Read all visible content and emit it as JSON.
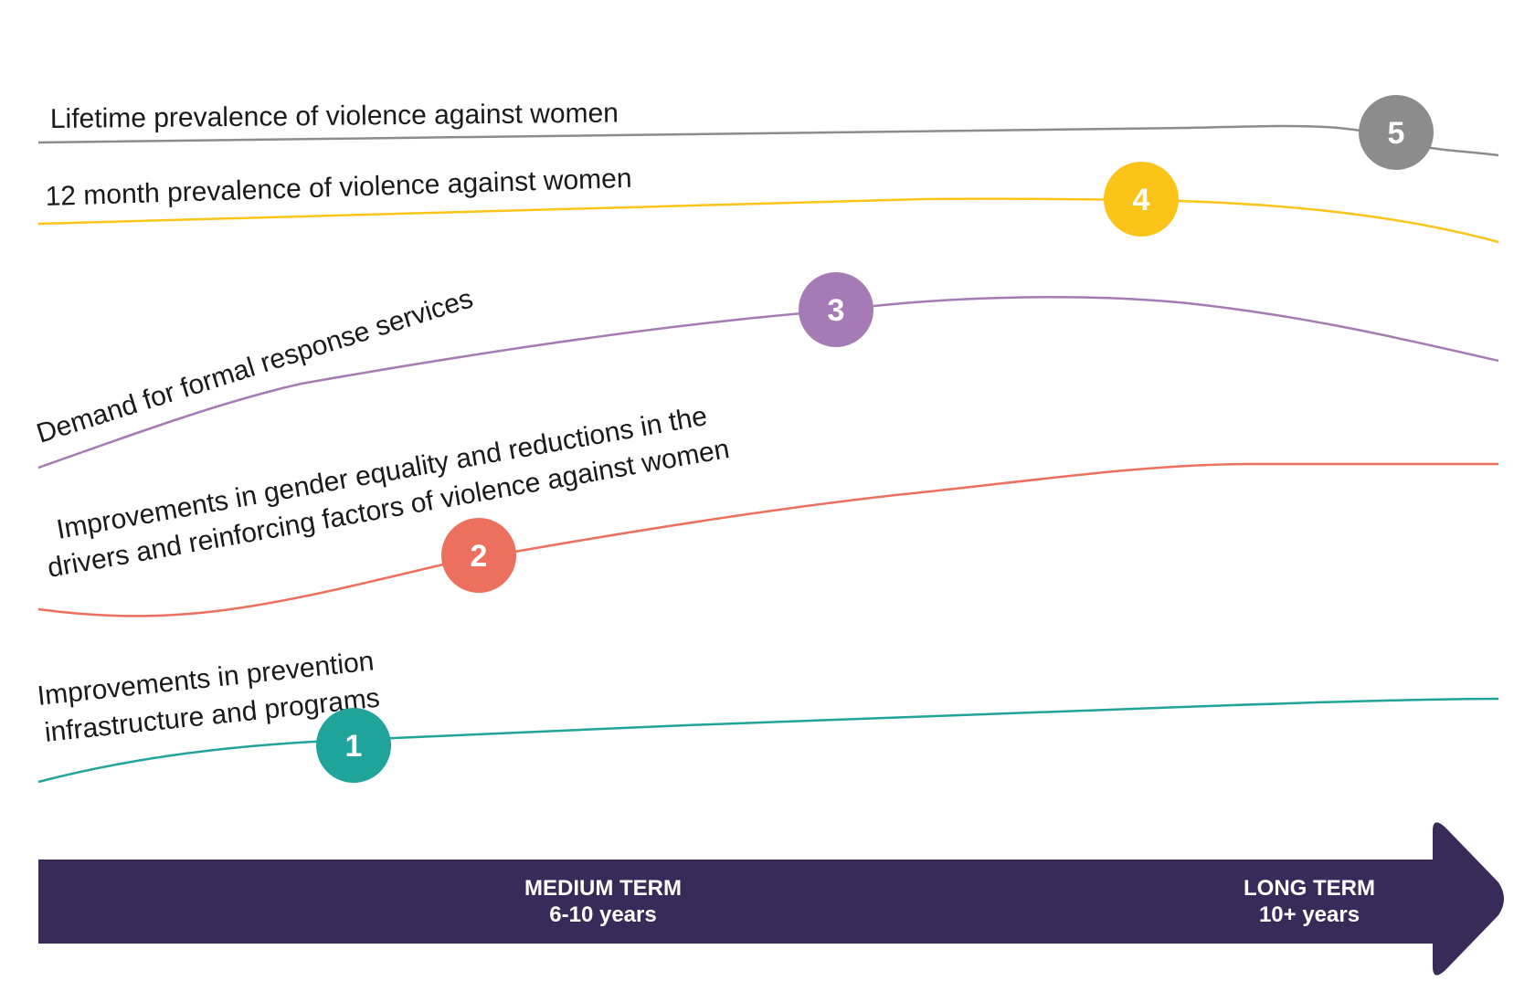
{
  "lines": [
    {
      "id": "lifetime-prevalence",
      "label_lines": [
        "Lifetime prevalence of violence against women"
      ],
      "color": "#8c8c8c",
      "marker": "5"
    },
    {
      "id": "twelve-month-prevalence",
      "label_lines": [
        "12 month prevalence of violence against women"
      ],
      "color": "#fcc419",
      "marker": "4"
    },
    {
      "id": "demand-response-services",
      "label_lines": [
        "Demand for formal response services"
      ],
      "color": "#a67bb5",
      "marker": "3"
    },
    {
      "id": "gender-equality",
      "label_lines": [
        "Improvements in gender equality and reductions in the",
        "drivers and reinforcing factors of violence against women"
      ],
      "color": "#ec705d",
      "marker": "2"
    },
    {
      "id": "prevention-infrastructure",
      "label_lines": [
        "Improvements in prevention",
        "infrastructure and programs"
      ],
      "color": "#1fa39a",
      "marker": "1"
    }
  ],
  "timeline": {
    "color": "#382a59",
    "medium": {
      "title": "MEDIUM TERM",
      "range": "6-10 years"
    },
    "long": {
      "title": "LONG TERM",
      "range": "10+ years"
    }
  }
}
